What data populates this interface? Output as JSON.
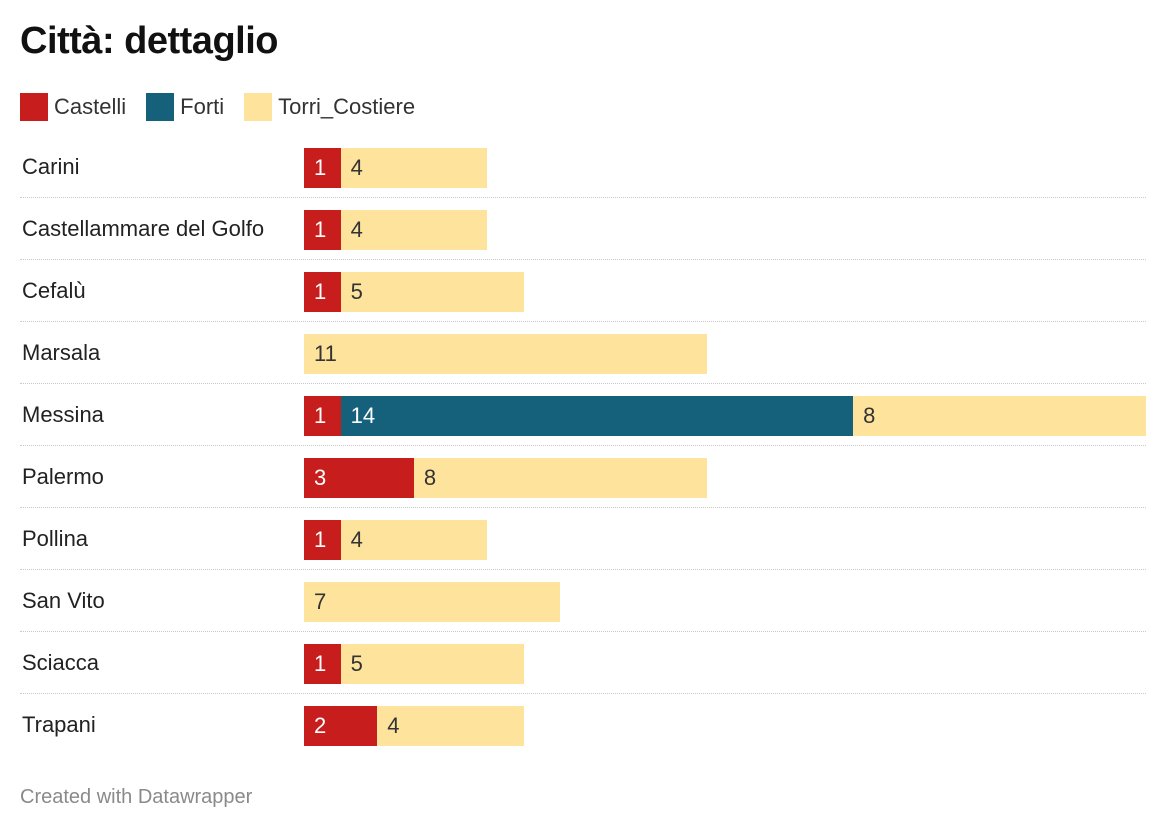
{
  "title": "Città: dettaglio",
  "footer": "Created with Datawrapper",
  "colors": {
    "Castelli": "#c71e1d",
    "Forti": "#15607a",
    "Torri_Costiere": "#fee39d"
  },
  "chart_data": {
    "type": "bar",
    "orientation": "horizontal",
    "stacked": true,
    "title": "Città: dettaglio",
    "legend_position": "top-left",
    "categories": [
      "Carini",
      "Castellammare del Golfo",
      "Cefalù",
      "Marsala",
      "Messina",
      "Palermo",
      "Pollina",
      "San Vito",
      "Sciacca",
      "Trapani"
    ],
    "series": [
      {
        "name": "Castelli",
        "values": [
          1,
          1,
          1,
          0,
          1,
          3,
          1,
          0,
          1,
          2
        ]
      },
      {
        "name": "Forti",
        "values": [
          0,
          0,
          0,
          0,
          14,
          0,
          0,
          0,
          0,
          0
        ]
      },
      {
        "name": "Torri_Costiere",
        "values": [
          4,
          4,
          5,
          11,
          8,
          8,
          4,
          7,
          5,
          4
        ]
      }
    ],
    "xlim": [
      0,
      23
    ],
    "grid": false
  }
}
